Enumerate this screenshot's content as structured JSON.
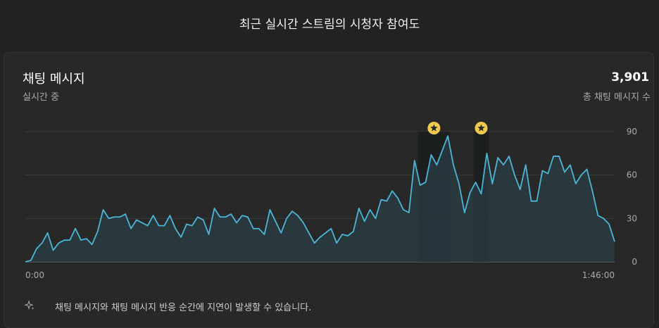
{
  "page": {
    "title": "최근 실시간 스트림의 시청자 참여도"
  },
  "metric": {
    "title": "채팅 메시지",
    "subtitle": "실시간 중",
    "value": "3,901",
    "value_caption": "총 채팅 메시지 수"
  },
  "footnote": "채팅 메시지와 채팅 메시지 반응 순간에 지연이 발생할 수 있습니다.",
  "colors": {
    "line": "#4cb6d7",
    "area": "#2a3d44",
    "highlight": "#1a1d1e",
    "marker": "#f2c94c",
    "grid": "#3a3a3a"
  },
  "chart_data": {
    "type": "area",
    "title": "",
    "xlabel": "",
    "ylabel": "",
    "ylim": [
      0,
      90
    ],
    "yticks": [
      "0",
      "30",
      "60",
      "90"
    ],
    "x_start_label": "0:00",
    "x_end_label": "1:46:00",
    "grid": true,
    "series": [
      {
        "values": [
          0,
          1,
          9,
          13,
          20,
          8,
          13,
          15,
          15,
          23,
          15,
          16,
          12,
          21,
          36,
          30,
          31,
          31,
          33,
          23,
          29,
          27,
          25,
          32,
          25,
          25,
          32,
          23,
          17,
          26,
          25,
          31,
          29,
          19,
          37,
          31,
          31,
          33,
          27,
          32,
          31,
          23,
          23,
          19,
          36,
          28,
          20,
          30,
          35,
          32,
          27,
          20,
          13,
          17,
          20,
          23,
          13,
          19,
          18,
          21,
          37,
          28,
          36,
          30,
          43,
          42,
          49,
          44,
          36,
          34,
          70,
          53,
          55,
          74,
          67,
          77,
          87,
          67,
          54,
          34,
          48,
          55,
          47,
          75,
          54,
          72,
          67,
          73,
          60,
          50,
          67,
          42,
          42,
          63,
          61,
          73,
          73,
          62,
          67,
          54,
          60,
          64,
          49,
          32,
          30,
          26,
          14
        ]
      }
    ],
    "highlights": [
      {
        "start_index": 71,
        "end_index": 76
      },
      {
        "start_index": 81,
        "end_index": 83
      }
    ]
  }
}
